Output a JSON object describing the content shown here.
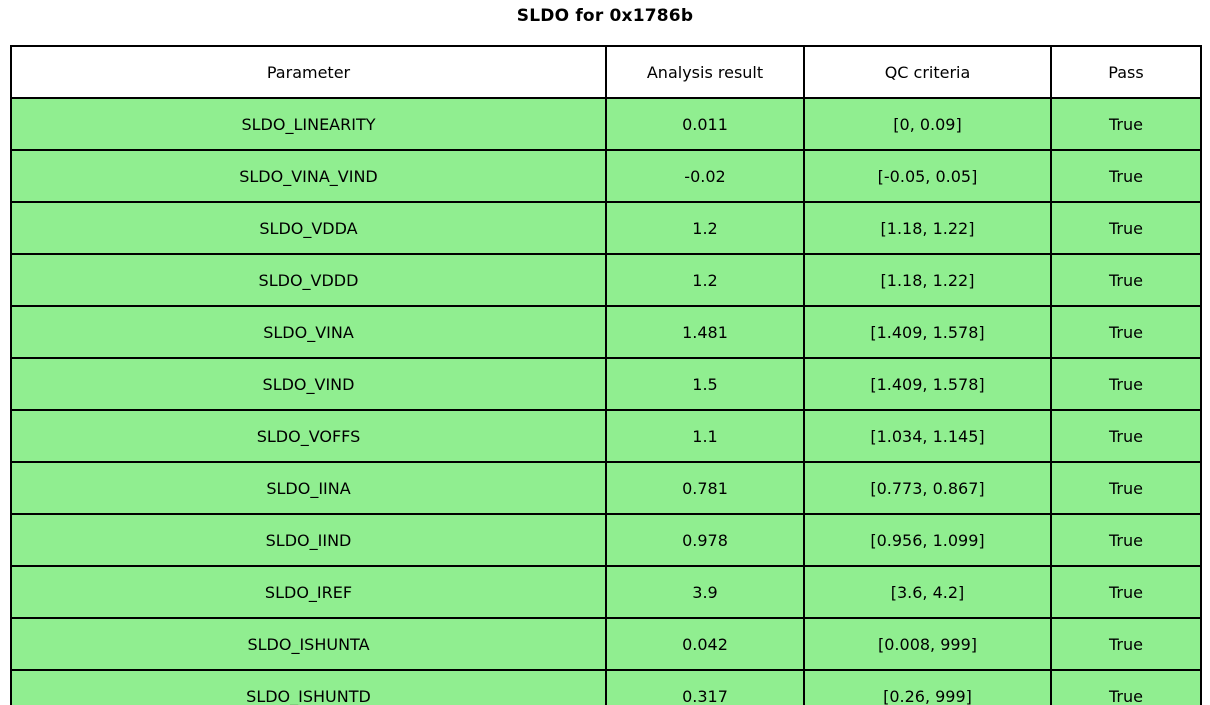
{
  "chart_data": {
    "type": "table",
    "title": "SLDO for 0x1786b",
    "columns": [
      "Parameter",
      "Analysis result",
      "QC criteria",
      "Pass"
    ],
    "rows": [
      [
        "SLDO_LINEARITY",
        "0.011",
        "[0, 0.09]",
        "True"
      ],
      [
        "SLDO_VINA_VIND",
        "-0.02",
        "[-0.05, 0.05]",
        "True"
      ],
      [
        "SLDO_VDDA",
        "1.2",
        "[1.18, 1.22]",
        "True"
      ],
      [
        "SLDO_VDDD",
        "1.2",
        "[1.18, 1.22]",
        "True"
      ],
      [
        "SLDO_VINA",
        "1.481",
        "[1.409, 1.578]",
        "True"
      ],
      [
        "SLDO_VIND",
        "1.5",
        "[1.409, 1.578]",
        "True"
      ],
      [
        "SLDO_VOFFS",
        "1.1",
        "[1.034, 1.145]",
        "True"
      ],
      [
        "SLDO_IINA",
        "0.781",
        "[0.773, 0.867]",
        "True"
      ],
      [
        "SLDO_IIND",
        "0.978",
        "[0.956, 1.099]",
        "True"
      ],
      [
        "SLDO_IREF",
        "3.9",
        "[3.6, 4.2]",
        "True"
      ],
      [
        "SLDO_ISHUNTA",
        "0.042",
        "[0.008, 999]",
        "True"
      ],
      [
        "SLDO_ISHUNTD",
        "0.317",
        "[0.26, 999]",
        "True"
      ]
    ],
    "legend": null,
    "grid": "table-borders",
    "all_rows_pass": true
  },
  "colors": {
    "row_bg": "#90EE90",
    "header_bg": "#FFFFFF",
    "border": "#000000",
    "text": "#000000",
    "background": "#FFFFFF"
  }
}
